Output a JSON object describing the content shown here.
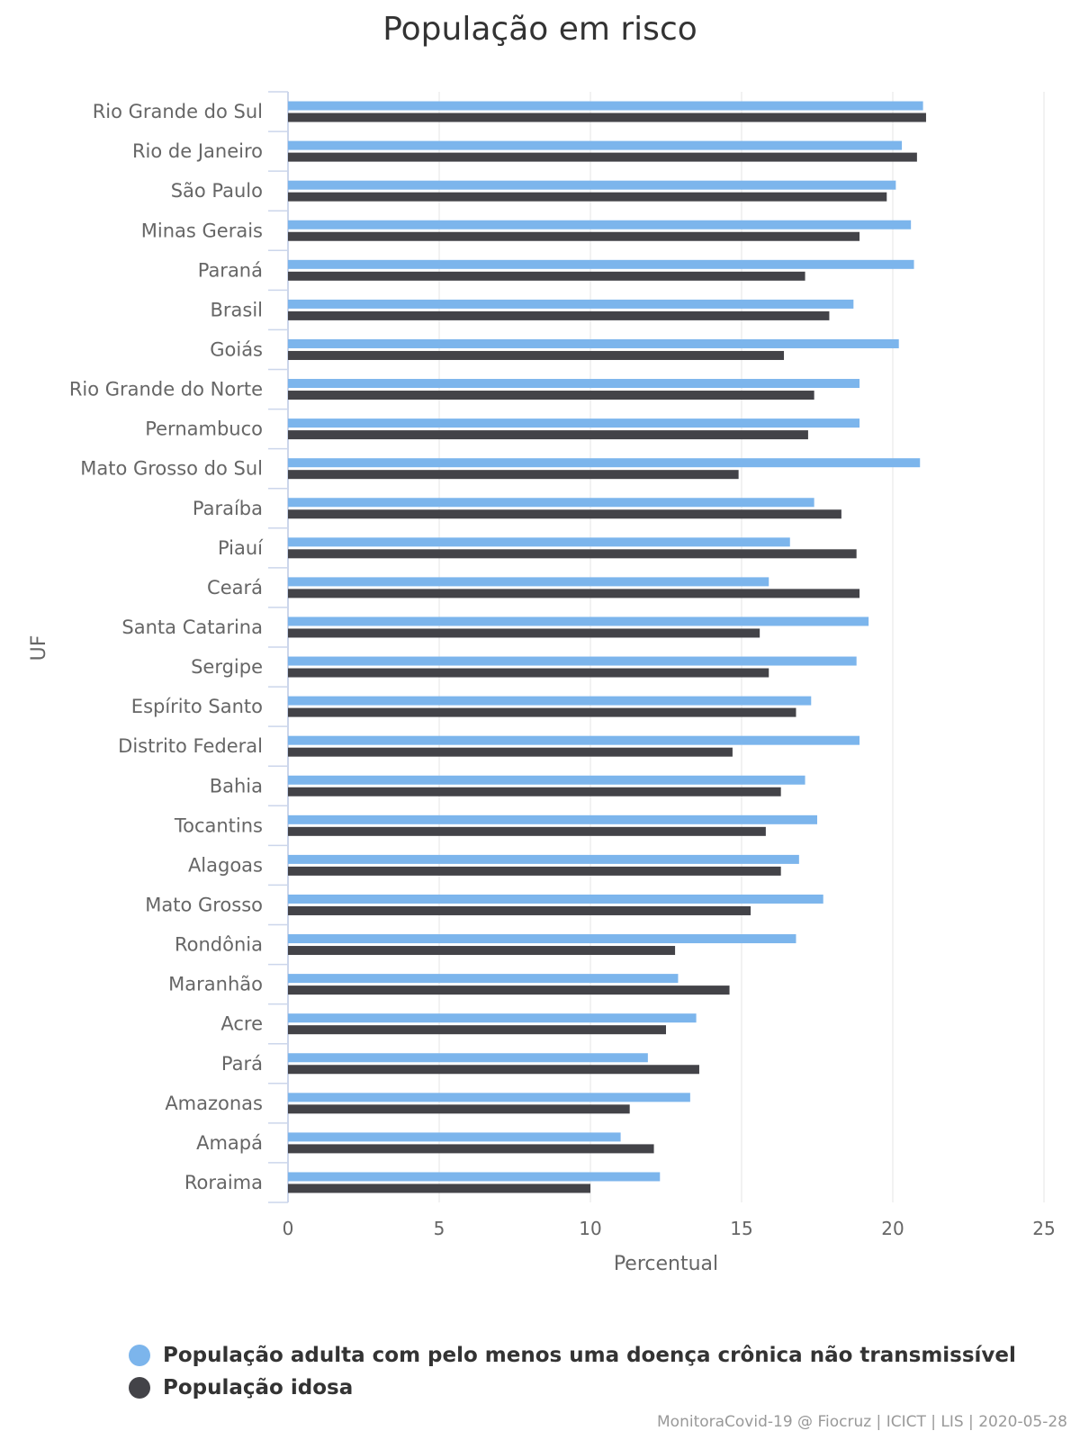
{
  "title": "População em risco",
  "credits": "MonitoraCovid-19 @ Fiocruz | ICICT | LIS | 2020-05-28",
  "chart_data": {
    "type": "bar",
    "orientation": "horizontal",
    "title": "População em risco",
    "xlabel": "UF",
    "ylabel": "Percentual",
    "ylim": [
      0,
      25
    ],
    "ticks": [
      "0",
      "5",
      "10",
      "15",
      "20",
      "25"
    ],
    "grid": true,
    "legend_position": "bottom-left",
    "categories": [
      "Rio Grande do Sul",
      "Rio de Janeiro",
      "São Paulo",
      "Minas Gerais",
      "Paraná",
      "Brasil",
      "Goiás",
      "Rio Grande do Norte",
      "Pernambuco",
      "Mato Grosso do Sul",
      "Paraíba",
      "Piauí",
      "Ceará",
      "Santa Catarina",
      "Sergipe",
      "Espírito Santo",
      "Distrito Federal",
      "Bahia",
      "Tocantins",
      "Alagoas",
      "Mato Grosso",
      "Rondônia",
      "Maranhão",
      "Acre",
      "Pará",
      "Amazonas",
      "Amapá",
      "Roraima"
    ],
    "series": [
      {
        "name": "População adulta com pelo menos uma doença crônica não transmissível",
        "color": "#7cb5ec",
        "values": [
          21.0,
          20.3,
          20.1,
          20.6,
          20.7,
          18.7,
          20.2,
          18.9,
          18.9,
          20.9,
          17.4,
          16.6,
          15.9,
          19.2,
          18.8,
          17.3,
          18.9,
          17.1,
          17.5,
          16.9,
          17.7,
          16.8,
          12.9,
          13.5,
          11.9,
          13.3,
          11.0,
          12.3
        ]
      },
      {
        "name": "População idosa",
        "color": "#434348",
        "values": [
          21.1,
          20.8,
          19.8,
          18.9,
          17.1,
          17.9,
          16.4,
          17.4,
          17.2,
          14.9,
          18.3,
          18.8,
          18.9,
          15.6,
          15.9,
          16.8,
          14.7,
          16.3,
          15.8,
          16.3,
          15.3,
          12.8,
          14.6,
          12.5,
          13.6,
          11.3,
          12.1,
          10.0
        ]
      }
    ]
  }
}
